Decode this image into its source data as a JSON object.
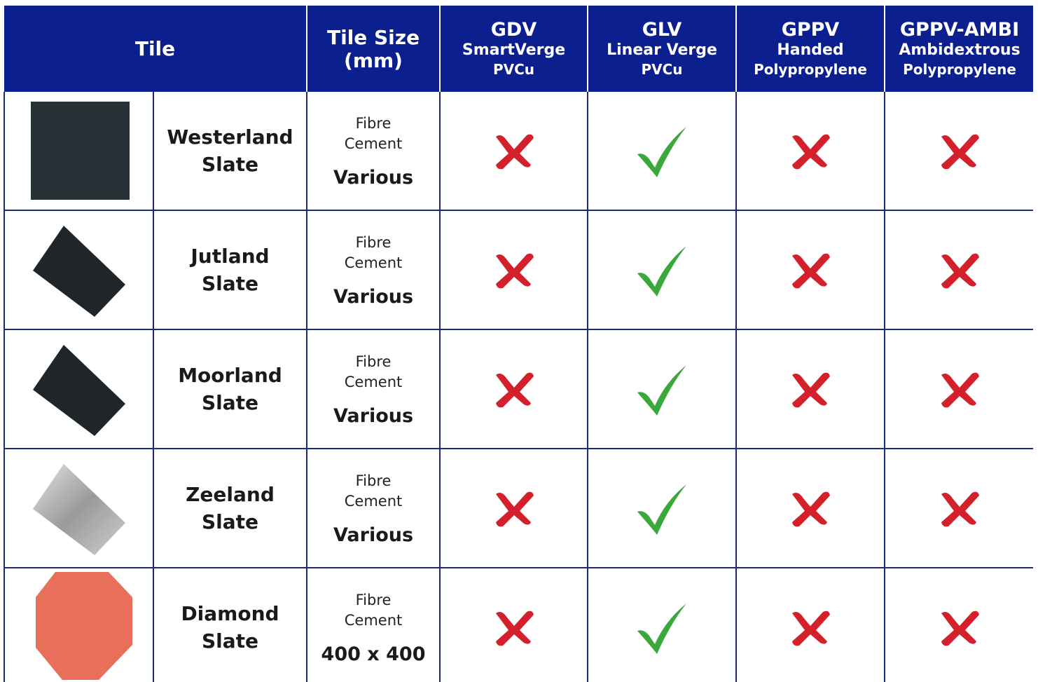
{
  "header": {
    "tile": "Tile",
    "tile_size": [
      "Tile Size",
      "(mm)"
    ],
    "products": [
      {
        "code": "GDV",
        "lines": [
          "SmartVerge",
          "PVCu"
        ]
      },
      {
        "code": "GLV",
        "lines": [
          "Linear Verge",
          "PVCu"
        ]
      },
      {
        "code": "GPPV",
        "lines": [
          "Handed",
          "Polypropylene"
        ]
      },
      {
        "code": "GPPV-AMBI",
        "lines": [
          "Ambidextrous",
          "Polypropylene"
        ]
      }
    ]
  },
  "rows": [
    {
      "name": [
        "Westerland",
        "Slate"
      ],
      "material": [
        "Fibre",
        "Cement"
      ],
      "size": "Various",
      "compatible": [
        false,
        true,
        false,
        false
      ]
    },
    {
      "name": [
        "Jutland",
        "Slate"
      ],
      "material": [
        "Fibre",
        "Cement"
      ],
      "size": "Various",
      "compatible": [
        false,
        true,
        false,
        false
      ]
    },
    {
      "name": [
        "Moorland",
        "Slate"
      ],
      "material": [
        "Fibre",
        "Cement"
      ],
      "size": "Various",
      "compatible": [
        false,
        true,
        false,
        false
      ]
    },
    {
      "name": [
        "Zeeland",
        "Slate"
      ],
      "material": [
        "Fibre",
        "Cement"
      ],
      "size": "Various",
      "compatible": [
        false,
        true,
        false,
        false
      ]
    },
    {
      "name": [
        "Diamond",
        "Slate"
      ],
      "material": [
        "Fibre",
        "Cement"
      ],
      "size": "400 x 400",
      "compatible": [
        false,
        true,
        false,
        false
      ]
    }
  ]
}
